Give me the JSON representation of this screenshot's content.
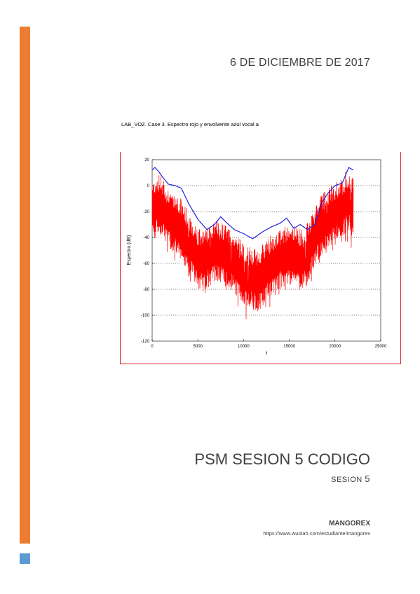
{
  "document": {
    "date": "6 DE DICIEMBRE DE 2017",
    "figure_caption": "LAB_VOZ. Case 3. Espectro rojo y envolvente azul vocal a",
    "title": "PSM SESION 5 CODIGO",
    "subtitle_word": "SESION",
    "subtitle_number": "5",
    "author": "MANGOREX",
    "url": "https://www.wuolah.com/estudiante/mangorex"
  },
  "colors": {
    "accent_bar": "#ed7d31",
    "accent_square": "#5b9bd5",
    "frame": "#e02020",
    "spectrum": "#ff0000",
    "envelope": "#2222dd"
  },
  "chart_data": {
    "type": "line",
    "xlabel": "f",
    "ylabel": "Espectro (dB)",
    "xlim": [
      0,
      25000
    ],
    "ylim": [
      -120,
      20
    ],
    "x_ticks": [
      "0",
      "5000",
      "10000",
      "15000",
      "20000",
      "25000"
    ],
    "y_ticks": [
      "20",
      "0",
      "-20",
      "-40",
      "-60",
      "-80",
      "-100",
      "-120"
    ],
    "grid": "horizontal dotted",
    "series": [
      {
        "color": "blue",
        "x": [
          0,
          300,
          700,
          1200,
          1800,
          2500,
          3200,
          4000,
          5000,
          6000,
          6800,
          7500,
          8200,
          9000,
          10000,
          11000,
          12000,
          13000,
          14000,
          14700,
          15500,
          16200,
          17000,
          17800,
          18500,
          19200,
          20000,
          20800,
          21500,
          22000
        ],
        "y": [
          12,
          14,
          11,
          6,
          1,
          0,
          -2,
          -14,
          -26,
          -34,
          -30,
          -24,
          -29,
          -34,
          -37,
          -41,
          -36,
          -32,
          -29,
          -25,
          -33,
          -30,
          -34,
          -30,
          -14,
          -6,
          0,
          2,
          14,
          12
        ]
      },
      {
        "color": "red",
        "x": [
          0,
          500,
          1000,
          1500,
          2000,
          2500,
          3000,
          3500,
          4000,
          4500,
          5000,
          5500,
          6000,
          6500,
          7000,
          7500,
          8000,
          8500,
          9000,
          9500,
          10000,
          10500,
          11000,
          11500,
          12000,
          12500,
          13000,
          13500,
          14000,
          14500,
          15000,
          15500,
          16000,
          16500,
          17000,
          17500,
          18000,
          18500,
          19000,
          19500,
          20000,
          20500,
          21000,
          21500,
          22000
        ],
        "y": [
          -20,
          -15,
          -16,
          -22,
          -26,
          -28,
          -32,
          -38,
          -44,
          -50,
          -56,
          -58,
          -56,
          -52,
          -50,
          -52,
          -54,
          -56,
          -60,
          -64,
          -68,
          -70,
          -72,
          -74,
          -70,
          -66,
          -62,
          -58,
          -56,
          -54,
          -52,
          -54,
          -56,
          -58,
          -52,
          -44,
          -36,
          -30,
          -28,
          -24,
          -22,
          -18,
          -14,
          -12,
          -16
        ]
      }
    ]
  }
}
